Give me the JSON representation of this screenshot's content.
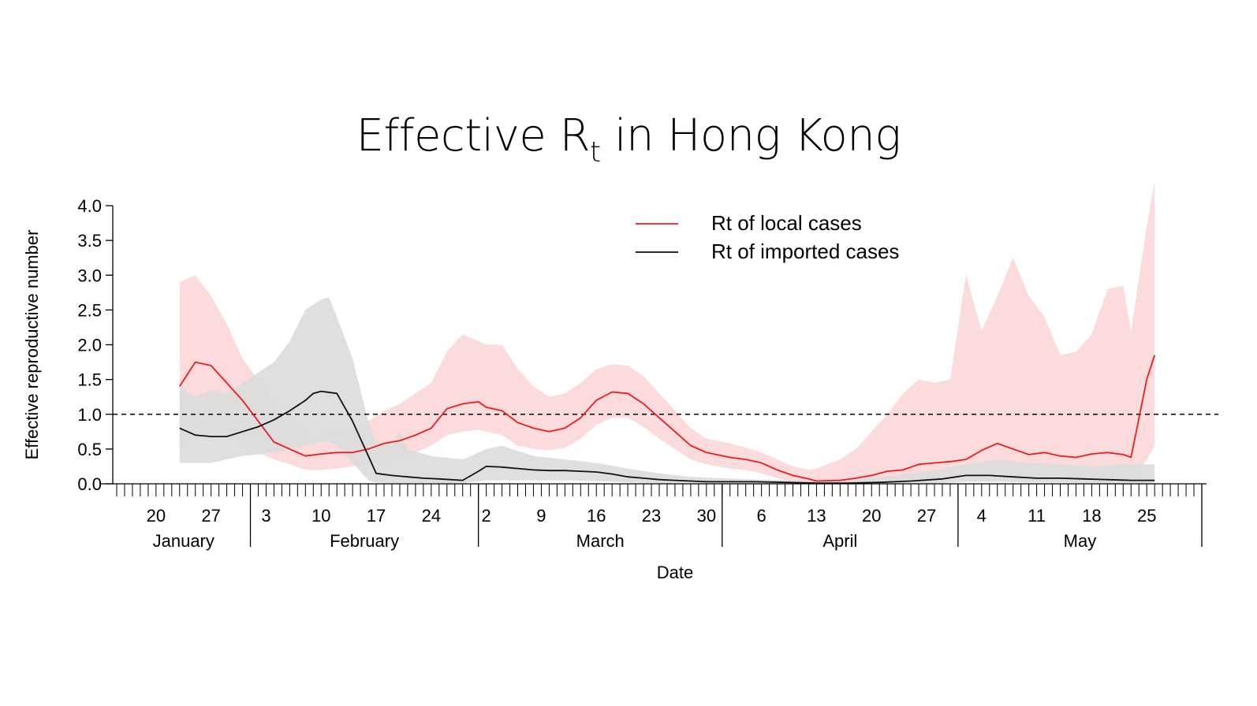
{
  "chart_data": {
    "type": "line",
    "title": "Effective R",
    "title_sub": "t",
    "title_suffix": " in Hong Kong",
    "xlabel": "Date",
    "ylabel": "Effective reproductive number",
    "ylim": [
      0,
      4
    ],
    "yticks": [
      "0.0",
      "0.5",
      "1.0",
      "1.5",
      "2.0",
      "2.5",
      "3.0",
      "3.5",
      "4.0"
    ],
    "xlim": [
      "2020-01-15",
      "2020-06-01"
    ],
    "xticks": [
      {
        "date": "2020-01-20",
        "label": "20"
      },
      {
        "date": "2020-01-27",
        "label": "27"
      },
      {
        "date": "2020-02-03",
        "label": "3"
      },
      {
        "date": "2020-02-10",
        "label": "10"
      },
      {
        "date": "2020-02-17",
        "label": "17"
      },
      {
        "date": "2020-02-24",
        "label": "24"
      },
      {
        "date": "2020-03-02",
        "label": "2"
      },
      {
        "date": "2020-03-09",
        "label": "9"
      },
      {
        "date": "2020-03-16",
        "label": "16"
      },
      {
        "date": "2020-03-23",
        "label": "23"
      },
      {
        "date": "2020-03-30",
        "label": "30"
      },
      {
        "date": "2020-04-06",
        "label": "6"
      },
      {
        "date": "2020-04-13",
        "label": "13"
      },
      {
        "date": "2020-04-20",
        "label": "20"
      },
      {
        "date": "2020-04-27",
        "label": "27"
      },
      {
        "date": "2020-05-04",
        "label": "4"
      },
      {
        "date": "2020-05-11",
        "label": "11"
      },
      {
        "date": "2020-05-18",
        "label": "18"
      },
      {
        "date": "2020-05-25",
        "label": "25"
      }
    ],
    "months": [
      {
        "label": "January",
        "start": "2020-01-15",
        "end": "2020-02-01"
      },
      {
        "label": "February",
        "start": "2020-02-01",
        "end": "2020-03-01"
      },
      {
        "label": "March",
        "start": "2020-03-01",
        "end": "2020-04-01"
      },
      {
        "label": "April",
        "start": "2020-04-01",
        "end": "2020-05-01"
      },
      {
        "label": "May",
        "start": "2020-05-01",
        "end": "2020-06-01"
      }
    ],
    "reference_line": {
      "y": 1.0,
      "style": "dashed"
    },
    "legend_position": "top-center",
    "series": [
      {
        "name": "Rt of local cases",
        "color": "#ee1c1c",
        "band_color": "#fbd5d7",
        "points": [
          [
            "2020-01-23",
            1.4
          ],
          [
            "2020-01-25",
            1.75
          ],
          [
            "2020-01-27",
            1.7
          ],
          [
            "2020-01-29",
            1.45
          ],
          [
            "2020-01-31",
            1.2
          ],
          [
            "2020-02-02",
            0.9
          ],
          [
            "2020-02-04",
            0.6
          ],
          [
            "2020-02-06",
            0.5
          ],
          [
            "2020-02-08",
            0.4
          ],
          [
            "2020-02-10",
            0.43
          ],
          [
            "2020-02-12",
            0.45
          ],
          [
            "2020-02-14",
            0.45
          ],
          [
            "2020-02-16",
            0.5
          ],
          [
            "2020-02-18",
            0.58
          ],
          [
            "2020-02-20",
            0.62
          ],
          [
            "2020-02-22",
            0.7
          ],
          [
            "2020-02-24",
            0.8
          ],
          [
            "2020-02-26",
            1.08
          ],
          [
            "2020-02-28",
            1.15
          ],
          [
            "2020-03-01",
            1.18
          ],
          [
            "2020-03-02",
            1.1
          ],
          [
            "2020-03-04",
            1.05
          ],
          [
            "2020-03-06",
            0.88
          ],
          [
            "2020-03-08",
            0.8
          ],
          [
            "2020-03-10",
            0.75
          ],
          [
            "2020-03-12",
            0.8
          ],
          [
            "2020-03-14",
            0.95
          ],
          [
            "2020-03-16",
            1.2
          ],
          [
            "2020-03-18",
            1.32
          ],
          [
            "2020-03-20",
            1.3
          ],
          [
            "2020-03-22",
            1.15
          ],
          [
            "2020-03-24",
            0.95
          ],
          [
            "2020-03-26",
            0.75
          ],
          [
            "2020-03-28",
            0.55
          ],
          [
            "2020-03-30",
            0.45
          ],
          [
            "2020-04-02",
            0.38
          ],
          [
            "2020-04-04",
            0.35
          ],
          [
            "2020-04-06",
            0.3
          ],
          [
            "2020-04-08",
            0.2
          ],
          [
            "2020-04-10",
            0.12
          ],
          [
            "2020-04-12",
            0.07
          ],
          [
            "2020-04-13",
            0.04
          ],
          [
            "2020-04-16",
            0.05
          ],
          [
            "2020-04-18",
            0.08
          ],
          [
            "2020-04-20",
            0.12
          ],
          [
            "2020-04-22",
            0.18
          ],
          [
            "2020-04-24",
            0.2
          ],
          [
            "2020-04-26",
            0.28
          ],
          [
            "2020-04-28",
            0.3
          ],
          [
            "2020-04-30",
            0.32
          ],
          [
            "2020-05-02",
            0.35
          ],
          [
            "2020-05-04",
            0.48
          ],
          [
            "2020-05-06",
            0.58
          ],
          [
            "2020-05-08",
            0.5
          ],
          [
            "2020-05-10",
            0.42
          ],
          [
            "2020-05-12",
            0.45
          ],
          [
            "2020-05-14",
            0.4
          ],
          [
            "2020-05-16",
            0.38
          ],
          [
            "2020-05-18",
            0.43
          ],
          [
            "2020-05-20",
            0.45
          ],
          [
            "2020-05-22",
            0.42
          ],
          [
            "2020-05-23",
            0.38
          ],
          [
            "2020-05-25",
            1.5
          ],
          [
            "2020-05-26",
            1.85
          ]
        ],
        "band": [
          [
            "2020-01-23",
            0.5,
            2.9
          ],
          [
            "2020-01-25",
            0.7,
            3.0
          ],
          [
            "2020-01-27",
            0.8,
            2.7
          ],
          [
            "2020-01-29",
            0.7,
            2.3
          ],
          [
            "2020-01-31",
            0.6,
            1.8
          ],
          [
            "2020-02-02",
            0.45,
            1.5
          ],
          [
            "2020-02-04",
            0.35,
            1.15
          ],
          [
            "2020-02-06",
            0.28,
            0.9
          ],
          [
            "2020-02-08",
            0.2,
            0.7
          ],
          [
            "2020-02-10",
            0.2,
            0.7
          ],
          [
            "2020-02-12",
            0.22,
            0.75
          ],
          [
            "2020-02-14",
            0.25,
            0.8
          ],
          [
            "2020-02-16",
            0.28,
            0.9
          ],
          [
            "2020-02-18",
            0.32,
            1.05
          ],
          [
            "2020-02-20",
            0.38,
            1.15
          ],
          [
            "2020-02-22",
            0.45,
            1.3
          ],
          [
            "2020-02-24",
            0.55,
            1.45
          ],
          [
            "2020-02-26",
            0.7,
            1.9
          ],
          [
            "2020-02-28",
            0.75,
            2.15
          ],
          [
            "2020-03-01",
            0.78,
            2.05
          ],
          [
            "2020-03-02",
            0.75,
            2.0
          ],
          [
            "2020-03-04",
            0.7,
            2.0
          ],
          [
            "2020-03-06",
            0.55,
            1.65
          ],
          [
            "2020-03-08",
            0.5,
            1.4
          ],
          [
            "2020-03-10",
            0.48,
            1.25
          ],
          [
            "2020-03-12",
            0.52,
            1.3
          ],
          [
            "2020-03-14",
            0.65,
            1.45
          ],
          [
            "2020-03-16",
            0.85,
            1.65
          ],
          [
            "2020-03-18",
            0.95,
            1.72
          ],
          [
            "2020-03-20",
            0.95,
            1.7
          ],
          [
            "2020-03-22",
            0.82,
            1.55
          ],
          [
            "2020-03-24",
            0.65,
            1.3
          ],
          [
            "2020-03-26",
            0.5,
            1.05
          ],
          [
            "2020-03-28",
            0.35,
            0.8
          ],
          [
            "2020-03-30",
            0.28,
            0.65
          ],
          [
            "2020-04-02",
            0.22,
            0.58
          ],
          [
            "2020-04-04",
            0.2,
            0.52
          ],
          [
            "2020-04-06",
            0.15,
            0.45
          ],
          [
            "2020-04-08",
            0.08,
            0.35
          ],
          [
            "2020-04-10",
            0.03,
            0.25
          ],
          [
            "2020-04-12",
            0.01,
            0.2
          ],
          [
            "2020-04-13",
            0.0,
            0.22
          ],
          [
            "2020-04-16",
            0.0,
            0.35
          ],
          [
            "2020-04-18",
            0.0,
            0.5
          ],
          [
            "2020-04-20",
            0.01,
            0.75
          ],
          [
            "2020-04-22",
            0.02,
            1.0
          ],
          [
            "2020-04-24",
            0.04,
            1.3
          ],
          [
            "2020-04-26",
            0.06,
            1.5
          ],
          [
            "2020-04-28",
            0.08,
            1.45
          ],
          [
            "2020-04-30",
            0.1,
            1.5
          ],
          [
            "2020-05-02",
            0.1,
            3.0
          ],
          [
            "2020-05-04",
            0.15,
            2.2
          ],
          [
            "2020-05-06",
            0.2,
            2.7
          ],
          [
            "2020-05-08",
            0.15,
            3.25
          ],
          [
            "2020-05-10",
            0.1,
            2.7
          ],
          [
            "2020-05-12",
            0.1,
            2.4
          ],
          [
            "2020-05-14",
            0.08,
            1.85
          ],
          [
            "2020-05-16",
            0.08,
            1.9
          ],
          [
            "2020-05-18",
            0.1,
            2.15
          ],
          [
            "2020-05-20",
            0.1,
            2.8
          ],
          [
            "2020-05-22",
            0.08,
            2.85
          ],
          [
            "2020-05-23",
            0.05,
            2.2
          ],
          [
            "2020-05-25",
            0.35,
            3.7
          ],
          [
            "2020-05-26",
            0.55,
            4.35
          ]
        ]
      },
      {
        "name": "Rt of imported cases",
        "color": "#111111",
        "band_color": "#dcdcdc",
        "points": [
          [
            "2020-01-23",
            0.8
          ],
          [
            "2020-01-25",
            0.7
          ],
          [
            "2020-01-27",
            0.68
          ],
          [
            "2020-01-29",
            0.68
          ],
          [
            "2020-01-31",
            0.75
          ],
          [
            "2020-02-02",
            0.82
          ],
          [
            "2020-02-04",
            0.92
          ],
          [
            "2020-02-06",
            1.05
          ],
          [
            "2020-02-08",
            1.2
          ],
          [
            "2020-02-09",
            1.3
          ],
          [
            "2020-02-10",
            1.33
          ],
          [
            "2020-02-12",
            1.3
          ],
          [
            "2020-02-14",
            0.9
          ],
          [
            "2020-02-16",
            0.4
          ],
          [
            "2020-02-17",
            0.15
          ],
          [
            "2020-02-19",
            0.12
          ],
          [
            "2020-02-21",
            0.1
          ],
          [
            "2020-02-23",
            0.08
          ],
          [
            "2020-02-25",
            0.07
          ],
          [
            "2020-02-28",
            0.05
          ],
          [
            "2020-03-01",
            0.18
          ],
          [
            "2020-03-02",
            0.25
          ],
          [
            "2020-03-04",
            0.24
          ],
          [
            "2020-03-06",
            0.22
          ],
          [
            "2020-03-08",
            0.2
          ],
          [
            "2020-03-10",
            0.19
          ],
          [
            "2020-03-12",
            0.19
          ],
          [
            "2020-03-14",
            0.18
          ],
          [
            "2020-03-16",
            0.17
          ],
          [
            "2020-03-18",
            0.14
          ],
          [
            "2020-03-20",
            0.1
          ],
          [
            "2020-03-22",
            0.08
          ],
          [
            "2020-03-24",
            0.06
          ],
          [
            "2020-03-26",
            0.05
          ],
          [
            "2020-03-28",
            0.04
          ],
          [
            "2020-03-30",
            0.03
          ],
          [
            "2020-04-01",
            0.03
          ],
          [
            "2020-04-05",
            0.03
          ],
          [
            "2020-04-09",
            0.02
          ],
          [
            "2020-04-13",
            0.01
          ],
          [
            "2020-04-17",
            0.01
          ],
          [
            "2020-04-21",
            0.02
          ],
          [
            "2020-04-25",
            0.04
          ],
          [
            "2020-04-29",
            0.07
          ],
          [
            "2020-05-02",
            0.12
          ],
          [
            "2020-05-05",
            0.12
          ],
          [
            "2020-05-08",
            0.1
          ],
          [
            "2020-05-11",
            0.08
          ],
          [
            "2020-05-14",
            0.08
          ],
          [
            "2020-05-17",
            0.07
          ],
          [
            "2020-05-20",
            0.06
          ],
          [
            "2020-05-23",
            0.05
          ],
          [
            "2020-05-26",
            0.05
          ]
        ],
        "band": [
          [
            "2020-01-23",
            0.3,
            1.4
          ],
          [
            "2020-01-25",
            0.3,
            1.25
          ],
          [
            "2020-01-27",
            0.3,
            1.35
          ],
          [
            "2020-01-29",
            0.35,
            1.3
          ],
          [
            "2020-01-31",
            0.4,
            1.45
          ],
          [
            "2020-02-02",
            0.42,
            1.6
          ],
          [
            "2020-02-04",
            0.45,
            1.75
          ],
          [
            "2020-02-06",
            0.5,
            2.05
          ],
          [
            "2020-02-08",
            0.55,
            2.5
          ],
          [
            "2020-02-10",
            0.6,
            2.65
          ],
          [
            "2020-02-11",
            0.6,
            2.68
          ],
          [
            "2020-02-12",
            0.55,
            2.4
          ],
          [
            "2020-02-14",
            0.3,
            1.8
          ],
          [
            "2020-02-16",
            0.05,
            0.9
          ],
          [
            "2020-02-17",
            0.02,
            0.6
          ],
          [
            "2020-02-19",
            0.01,
            0.55
          ],
          [
            "2020-02-20",
            0.01,
            0.75
          ],
          [
            "2020-02-21",
            0.01,
            0.5
          ],
          [
            "2020-02-24",
            0.01,
            0.4
          ],
          [
            "2020-02-28",
            0.01,
            0.35
          ],
          [
            "2020-03-02",
            0.05,
            0.5
          ],
          [
            "2020-03-04",
            0.05,
            0.55
          ],
          [
            "2020-03-08",
            0.05,
            0.4
          ],
          [
            "2020-03-12",
            0.05,
            0.35
          ],
          [
            "2020-03-16",
            0.04,
            0.3
          ],
          [
            "2020-03-20",
            0.02,
            0.22
          ],
          [
            "2020-03-24",
            0.01,
            0.15
          ],
          [
            "2020-03-28",
            0.01,
            0.1
          ],
          [
            "2020-04-01",
            0.0,
            0.08
          ],
          [
            "2020-04-06",
            0.0,
            0.06
          ],
          [
            "2020-04-13",
            0.0,
            0.05
          ],
          [
            "2020-04-20",
            0.0,
            0.08
          ],
          [
            "2020-04-25",
            0.0,
            0.15
          ],
          [
            "2020-04-29",
            0.01,
            0.22
          ],
          [
            "2020-05-02",
            0.03,
            0.28
          ],
          [
            "2020-05-06",
            0.03,
            0.35
          ],
          [
            "2020-05-10",
            0.02,
            0.3
          ],
          [
            "2020-05-14",
            0.02,
            0.28
          ],
          [
            "2020-05-18",
            0.01,
            0.25
          ],
          [
            "2020-05-22",
            0.01,
            0.28
          ],
          [
            "2020-05-26",
            0.01,
            0.28
          ]
        ]
      }
    ]
  }
}
